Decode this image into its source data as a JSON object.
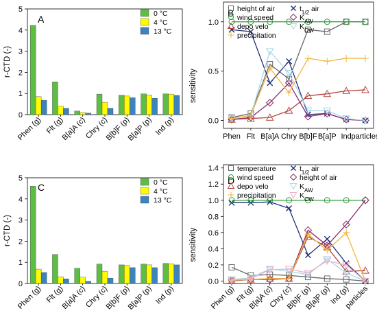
{
  "colors": {
    "green": "#5cbf44",
    "yellow": "#fffb00",
    "blue": "#3d83bd",
    "navy": "#1f2d7a",
    "sens_green": "#2e9a3a",
    "sens_purple": "#8a2a6b",
    "sens_red": "#b5463f",
    "sens_cyan": "#a8d8ea",
    "sens_gold": "#f2b53a",
    "sens_gray": "#666666",
    "sens_pink": "#ebb1c8"
  },
  "chart_data": [
    {
      "panel": "A",
      "type": "bar",
      "ylabel": "r-CTD (-)",
      "ylim": [
        0,
        5
      ],
      "yticks": [
        "0",
        "1",
        "2",
        "3",
        "4",
        "5"
      ],
      "categories": [
        "Phen (g)",
        "Flt (g)",
        "B[a]A (c)",
        "Chry (c)",
        "B[b]F (p)",
        "B[a]P (p)",
        "Ind (p)"
      ],
      "legend_position": "top-right",
      "series": [
        {
          "name": "0 °C",
          "color_key": "green",
          "values": [
            4.22,
            1.55,
            0.17,
            0.97,
            0.92,
            0.98,
            0.98
          ]
        },
        {
          "name": "4 °C",
          "color_key": "yellow",
          "values": [
            0.85,
            0.4,
            0.1,
            0.58,
            0.88,
            0.93,
            0.97
          ]
        },
        {
          "name": "13 °C",
          "color_key": "blue",
          "values": [
            0.68,
            0.3,
            0.07,
            0.3,
            0.8,
            0.77,
            0.91
          ]
        }
      ]
    },
    {
      "panel": "C",
      "type": "bar",
      "ylabel": "r-CTD (-)",
      "ylim": [
        0,
        5
      ],
      "yticks": [
        "0",
        "1",
        "2",
        "3",
        "4",
        "5"
      ],
      "categories": [
        "Phen (g)",
        "Flt (g)",
        "B[a]A (c)",
        "Chry (c)",
        "B[b]F (p)",
        "B[a]P (p)",
        "Ind (p)"
      ],
      "legend_position": "top-right",
      "series": [
        {
          "name": "0 °C",
          "color_key": "green",
          "values": [
            4.6,
            1.37,
            0.72,
            0.92,
            0.88,
            0.92,
            0.95
          ]
        },
        {
          "name": "4 °C",
          "color_key": "yellow",
          "values": [
            0.68,
            0.32,
            0.3,
            0.58,
            0.85,
            0.88,
            0.93
          ]
        },
        {
          "name": "13 °C",
          "color_key": "blue",
          "values": [
            0.52,
            0.22,
            0.1,
            0.25,
            0.75,
            0.75,
            0.88
          ]
        }
      ]
    },
    {
      "panel": "B",
      "type": "line",
      "ylabel": "sensitivity",
      "ylim": [
        -0.08,
        1.2
      ],
      "yticks": [
        0.0,
        0.5,
        1.0
      ],
      "ytick_labels": [
        "0.0",
        "0.5",
        "1.0"
      ],
      "categories": [
        "Phen",
        "Flt",
        "B[a]A",
        "Chry",
        "B[b]F",
        "B[a]P",
        "Ind",
        "particles"
      ],
      "legend_position": "top",
      "series": [
        {
          "name": "height of air",
          "marker": "square",
          "color_key": "sens_gray",
          "values": [
            0.03,
            0.07,
            0.57,
            0.42,
            0.92,
            0.9,
            1.0,
            1.0
          ]
        },
        {
          "name": "t1/2 air",
          "name_parts": [
            "t",
            "1/2",
            " air"
          ],
          "marker": "x",
          "color_key": "navy",
          "values": [
            0.92,
            0.9,
            0.38,
            0.6,
            0.06,
            0.07,
            0.01,
            0.0
          ]
        },
        {
          "name": "wind speed",
          "marker": "circle",
          "color_key": "sens_green",
          "values": [
            1.0,
            1.0,
            1.0,
            1.0,
            1.0,
            1.0,
            1.0,
            1.0
          ]
        },
        {
          "name": "KAW",
          "name_parts": [
            "K",
            "AW",
            ""
          ],
          "marker": "diamond",
          "color_key": "sens_purple",
          "values": [
            0.01,
            0.03,
            0.18,
            0.38,
            0.04,
            0.07,
            0.01,
            0.0
          ]
        },
        {
          "name": "depo velo",
          "marker": "triangle-up",
          "color_key": "sens_red",
          "values": [
            0.01,
            0.02,
            0.03,
            0.1,
            0.25,
            0.27,
            0.3,
            0.31
          ]
        },
        {
          "name": "KOW",
          "name_parts": [
            "K",
            "OW",
            ""
          ],
          "marker": "triangle-down",
          "color_key": "sens_cyan",
          "values": [
            0.02,
            0.05,
            0.7,
            0.48,
            0.1,
            0.1,
            0.02,
            0.0
          ]
        },
        {
          "name": "precipitation",
          "marker": "plus",
          "color_key": "sens_gold",
          "values": [
            0.02,
            0.05,
            0.53,
            0.28,
            0.63,
            0.6,
            0.63,
            0.63
          ]
        }
      ]
    },
    {
      "panel": "D",
      "type": "line",
      "ylabel": "sensitivity",
      "ylim": [
        -0.03,
        1.44
      ],
      "yticks": [
        0.0,
        0.2,
        0.4,
        0.6,
        0.8,
        1.0,
        1.2,
        1.4
      ],
      "ytick_labels": [
        "0.0",
        "0.2",
        "0.4",
        "0.6",
        "0.8",
        "1.0",
        "1.2",
        "1.4"
      ],
      "categories": [
        "Phen (g)",
        "Flt (g)",
        "B[a]A (c)",
        "Chry (c)",
        "B[b]F (p)",
        "B[a]P (p)",
        "Ind (p)",
        "particles"
      ],
      "legend_position": "top",
      "series": [
        {
          "name": "temperature",
          "marker": "square",
          "color_key": "sens_gray",
          "values": [
            0.17,
            0.07,
            0.08,
            0.07,
            0.05,
            0.03,
            0.02,
            0.0
          ]
        },
        {
          "name": "t1/2 air",
          "name_parts": [
            "t",
            "1/2",
            " air"
          ],
          "marker": "x",
          "color_key": "navy",
          "values": [
            0.97,
            0.97,
            0.98,
            0.9,
            0.32,
            0.52,
            0.22,
            0.0
          ]
        },
        {
          "name": "wind speed",
          "marker": "circle",
          "color_key": "sens_green",
          "values": [
            1.0,
            1.0,
            1.0,
            1.0,
            1.0,
            1.0,
            1.0,
            1.0
          ]
        },
        {
          "name": "height of air",
          "marker": "diamond",
          "color_key": "sens_purple",
          "values": [
            0.01,
            0.02,
            0.02,
            0.03,
            0.63,
            0.44,
            0.7,
            1.0
          ]
        },
        {
          "name": "depo velo",
          "marker": "triangle-up",
          "color_key": "sens_red",
          "values": [
            0.0,
            0.02,
            0.03,
            0.03,
            0.55,
            0.42,
            0.12,
            0.13
          ]
        },
        {
          "name": "KAW",
          "name_parts": [
            "K",
            "AW",
            ""
          ],
          "marker": "triangle-down",
          "color_key": "sens_cyan",
          "values": [
            0.02,
            0.04,
            0.15,
            0.12,
            0.08,
            0.27,
            0.1,
            0.0
          ]
        },
        {
          "name": "precipitation",
          "marker": "plus",
          "color_key": "sens_gold",
          "values": [
            0.01,
            0.02,
            0.03,
            0.03,
            0.58,
            0.38,
            0.6,
            0.0
          ]
        },
        {
          "name": "KOW",
          "name_parts": [
            "K",
            "OW",
            ""
          ],
          "marker": "triangle-down",
          "color_key": "sens_pink",
          "values": [
            0.01,
            0.03,
            0.14,
            0.15,
            0.1,
            0.25,
            0.2,
            0.0
          ]
        }
      ]
    }
  ]
}
